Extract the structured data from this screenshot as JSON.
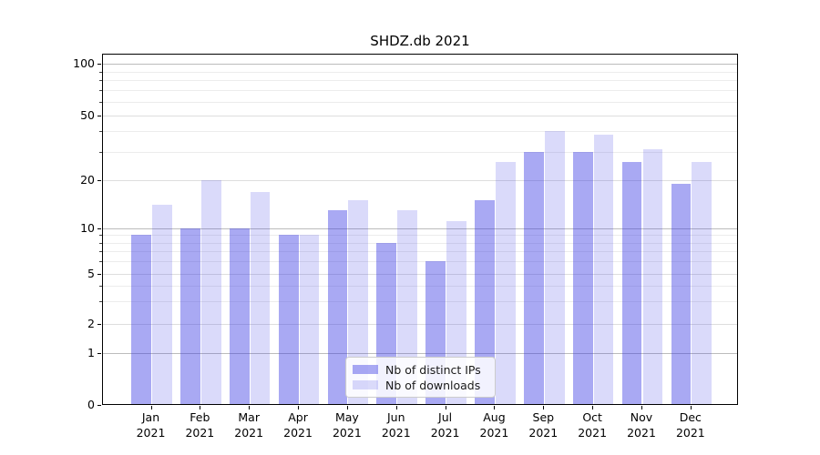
{
  "chart_data": {
    "type": "bar",
    "title": "SHDZ.db 2021",
    "year": "2021",
    "months": [
      "Jan",
      "Feb",
      "Mar",
      "Apr",
      "May",
      "Jun",
      "Jul",
      "Aug",
      "Sep",
      "Oct",
      "Nov",
      "Dec"
    ],
    "categories": [
      "Jan 2021",
      "Feb 2021",
      "Mar 2021",
      "Apr 2021",
      "May 2021",
      "Jun 2021",
      "Jul 2021",
      "Aug 2021",
      "Sep 2021",
      "Oct 2021",
      "Nov 2021",
      "Dec 2021"
    ],
    "series": [
      {
        "name": "Nb of distinct IPs",
        "color": "rgba(60,60,228,0.44)",
        "color_hex": "#a9a9f3",
        "values": [
          9,
          10,
          10,
          9,
          13,
          8,
          6,
          15,
          30,
          30,
          26,
          19
        ]
      },
      {
        "name": "Nb of downloads",
        "color": "rgba(60,60,228,0.19)",
        "color_hex": "#dadafa",
        "values": [
          14,
          20,
          17,
          9,
          15,
          13,
          11,
          26,
          40,
          38,
          31,
          26
        ]
      }
    ],
    "y_axis": {
      "scale": "symlog",
      "tick_labels": [
        "0",
        "1",
        "2",
        "5",
        "10",
        "20",
        "50",
        "100"
      ],
      "ticks": [
        0,
        1,
        2,
        5,
        10,
        20,
        50,
        100
      ],
      "power_of_ten_gridlines": [
        1,
        10,
        100
      ],
      "labeled_gridlines": [
        2,
        5,
        20,
        50
      ],
      "minor_gridlines": [
        3,
        4,
        6,
        7,
        8,
        9,
        30,
        40,
        60,
        70,
        80,
        90
      ],
      "ylim": [
        0,
        115
      ]
    },
    "legend": {
      "position": "lower center"
    },
    "grid": true,
    "colors": {
      "major_grid": "#bcbcbc",
      "labeled_grid": "#dedede",
      "minor_grid": "#ececec",
      "spine": "#000000"
    }
  }
}
